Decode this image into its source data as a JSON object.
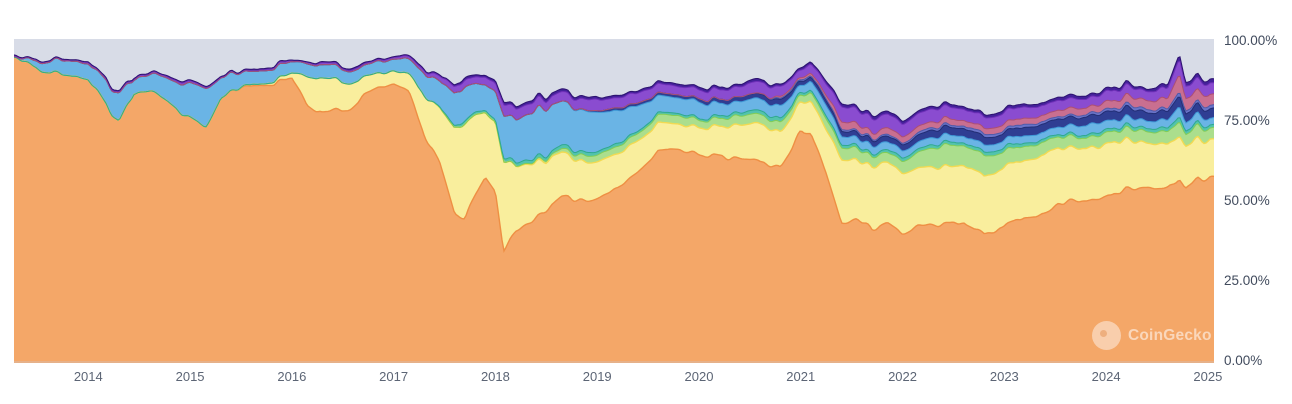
{
  "watermark": {
    "text": "CoinGecko"
  },
  "colors": {
    "page_bg": "#ffffff",
    "plot_bg": "#d8dce7",
    "axis_label_y": "#414b5d",
    "axis_label_x": "#5c6575"
  },
  "chart_data": {
    "type": "area",
    "stacked": true,
    "title": "",
    "xlabel": "",
    "ylabel": "",
    "unit": "%",
    "ylim": [
      0,
      100
    ],
    "x_range": [
      2013.27,
      2025.06
    ],
    "grid": false,
    "legend_position": "none",
    "y_ticks": [
      "100.00%",
      "75.00%",
      "50.00%",
      "25.00%",
      "0.00%"
    ],
    "x_ticks": [
      2014,
      2015,
      2016,
      2017,
      2018,
      2019,
      2020,
      2021,
      2022,
      2023,
      2024,
      2025
    ],
    "background_note": "remainder to 100% rendered as plain grey plot background",
    "x": [
      2013.3,
      2013.5,
      2013.75,
      2014.0,
      2014.2,
      2014.3,
      2014.45,
      2014.6,
      2014.8,
      2015.0,
      2015.15,
      2015.3,
      2015.5,
      2015.75,
      2016.0,
      2016.15,
      2016.3,
      2016.5,
      2016.7,
      2016.85,
      2017.0,
      2017.15,
      2017.3,
      2017.45,
      2017.6,
      2017.7,
      2017.8,
      2017.9,
      2018.0,
      2018.08,
      2018.2,
      2018.35,
      2018.5,
      2018.65,
      2018.8,
      2019.0,
      2019.2,
      2019.4,
      2019.6,
      2019.8,
      2020.0,
      2020.2,
      2020.4,
      2020.6,
      2020.8,
      2021.0,
      2021.1,
      2021.25,
      2021.4,
      2021.55,
      2021.7,
      2021.85,
      2022.0,
      2022.2,
      2022.4,
      2022.6,
      2022.8,
      2023.0,
      2023.2,
      2023.4,
      2023.6,
      2023.8,
      2024.0,
      2024.2,
      2024.4,
      2024.6,
      2024.72,
      2024.78,
      2024.9,
      2025.0
    ],
    "series": [
      {
        "name": "orange-base-layer",
        "fill": "#f4a768",
        "stroke": "#ee8f44",
        "values": [
          94.5,
          92,
          89,
          88,
          80,
          76,
          85,
          84,
          80,
          76,
          73,
          82,
          85,
          87,
          88,
          79,
          76,
          79,
          83,
          85,
          86,
          84,
          72,
          62,
          45,
          44,
          52,
          57,
          52,
          34,
          40,
          43,
          46,
          50,
          50,
          51,
          53,
          58,
          65,
          66,
          65,
          64,
          63,
          61,
          61,
          71,
          70,
          58,
          43,
          45,
          42,
          44,
          41,
          42,
          42,
          44,
          40,
          42,
          46,
          47,
          49,
          49,
          50,
          53,
          54,
          55,
          58,
          55,
          57,
          56
        ]
      },
      {
        "name": "yellow-layer",
        "fill": "#f9ee9d",
        "stroke": "#f2da52",
        "values": [
          0,
          0,
          0,
          0,
          0,
          0,
          0,
          0,
          0,
          0,
          0,
          0,
          0.2,
          0.5,
          1.5,
          9,
          11,
          9,
          6,
          4.5,
          4,
          5.5,
          12,
          17,
          26,
          29,
          24,
          20,
          22,
          28,
          21,
          19,
          16,
          14,
          12,
          11,
          10.5,
          9.5,
          8.5,
          8,
          8.5,
          9,
          10,
          11.5,
          11,
          8.5,
          10,
          13,
          20,
          19,
          20,
          19.5,
          19,
          18.5,
          18.5,
          18,
          18,
          18.5,
          18,
          18,
          17.5,
          16.5,
          16,
          15.5,
          14.5,
          13.5,
          13.5,
          13,
          12.5,
          12
        ]
      },
      {
        "name": "green-layer",
        "fill": "#abde8d",
        "stroke": "#82cd57",
        "values": [
          0,
          0,
          0,
          0,
          0,
          0,
          0,
          0,
          0,
          0,
          0,
          0,
          0,
          0,
          0,
          0,
          0,
          0,
          0,
          0,
          0,
          0,
          0,
          0,
          0,
          0,
          0,
          0,
          0,
          0,
          0,
          0.2,
          0.5,
          1,
          1.8,
          2,
          2.3,
          2.5,
          2.5,
          2.5,
          2.5,
          2.5,
          2.8,
          3,
          3,
          2,
          2.5,
          3.5,
          3.8,
          3.5,
          3.2,
          3.2,
          3.8,
          5.5,
          6.5,
          6,
          6.5,
          5,
          4.2,
          3.8,
          3.5,
          3.2,
          3.5,
          3.5,
          3.5,
          3.8,
          4.5,
          3.6,
          3.8,
          3.5
        ]
      },
      {
        "name": "teal-layer",
        "fill": "#52c3ad",
        "stroke": "#2fa98f",
        "values": [
          0,
          0,
          0,
          0,
          0,
          0,
          0,
          0,
          0,
          0,
          0,
          0,
          0,
          0,
          0,
          0,
          0,
          0,
          0,
          0,
          0,
          0,
          0,
          0.4,
          0.8,
          1,
          0.9,
          0.8,
          0.9,
          1.1,
          1,
          1,
          1,
          1,
          1,
          1,
          0.9,
          0.8,
          0.8,
          0.8,
          0.8,
          0.8,
          0.9,
          1,
          1,
          0.8,
          0.8,
          1,
          1.1,
          1,
          1,
          1,
          1,
          1,
          1,
          1,
          1,
          1,
          1,
          0.9,
          0.9,
          0.9,
          0.9,
          0.9,
          0.9,
          1,
          1.4,
          1,
          1,
          1
        ]
      },
      {
        "name": "light-blue-layer",
        "fill": "#6ab4e5",
        "stroke": "#3f99d6",
        "values": [
          0.2,
          2.5,
          4.5,
          5,
          7.5,
          8.5,
          4.5,
          5,
          7.5,
          11,
          12,
          6.5,
          4.5,
          4,
          3.5,
          4,
          4,
          4,
          3.5,
          3.5,
          3.5,
          4.5,
          7.5,
          8,
          10,
          11,
          9,
          8,
          9,
          13,
          14,
          15,
          15,
          14,
          13,
          12,
          10,
          8,
          5,
          4.5,
          5,
          4,
          3.5,
          3.5,
          4,
          2.2,
          3,
          3.5,
          2.8,
          2.5,
          2.5,
          2.5,
          2.3,
          2.2,
          2.2,
          2.2,
          2.3,
          2.5,
          2.4,
          2.4,
          2.6,
          3,
          2.6,
          2.5,
          2.3,
          2.3,
          3,
          2.4,
          2.4,
          2.3
        ]
      },
      {
        "name": "navy-layer",
        "fill": "#2f3e93",
        "stroke": "#222e75",
        "values": [
          0,
          0,
          0,
          0,
          0,
          0,
          0,
          0,
          0,
          0,
          0,
          0,
          0,
          0,
          0,
          0,
          0,
          0,
          0,
          0,
          0,
          0,
          0,
          0,
          0,
          0,
          0,
          0,
          0,
          0,
          0,
          0,
          0,
          0,
          0.3,
          0.5,
          0.8,
          1,
          1,
          1,
          1.1,
          1.2,
          1.4,
          1.6,
          1.8,
          1.3,
          1.4,
          1.6,
          1.6,
          1.6,
          1.8,
          1.8,
          2,
          2.2,
          2.3,
          2.3,
          2.5,
          2.5,
          2.5,
          2.5,
          2.5,
          2.6,
          2.8,
          2.8,
          2.6,
          2.7,
          3.4,
          2.8,
          2.8,
          2.7
        ]
      },
      {
        "name": "slate-blue-layer",
        "fill": "#6a74c9",
        "stroke": "#515ba9",
        "values": [
          0,
          0,
          0,
          0,
          0,
          0,
          0,
          0,
          0,
          0,
          0,
          0,
          0,
          0,
          0,
          0,
          0,
          0,
          0,
          0,
          0,
          0,
          0,
          0,
          0,
          0,
          0,
          0,
          0,
          0,
          0,
          0,
          0,
          0,
          0,
          0,
          0,
          0,
          0,
          0,
          0,
          0,
          0,
          0.2,
          0.4,
          0.4,
          0.4,
          0.5,
          0.6,
          0.6,
          0.6,
          0.7,
          0.7,
          0.8,
          0.8,
          0.8,
          0.8,
          0.8,
          0.8,
          0.8,
          0.8,
          0.9,
          0.9,
          0.9,
          0.9,
          0.9,
          1.2,
          1,
          1,
          0.9
        ]
      },
      {
        "name": "rose-layer",
        "fill": "#c96f90",
        "stroke": "#ad4f73",
        "values": [
          0,
          0,
          0,
          0,
          0,
          0,
          0,
          0,
          0,
          0,
          0,
          0,
          0,
          0,
          0,
          0,
          0,
          0,
          0,
          0,
          0,
          0,
          0,
          0,
          0,
          0,
          0,
          0,
          0,
          0,
          0,
          0,
          0,
          0,
          0,
          0,
          0,
          0,
          0,
          0,
          0,
          0,
          0,
          0,
          0.5,
          0.6,
          0.7,
          1.2,
          2.4,
          2,
          2,
          2,
          1.9,
          1.8,
          1.8,
          1.7,
          2,
          2,
          1.9,
          2,
          2.1,
          2.3,
          2.5,
          2.7,
          2.8,
          3.2,
          5.5,
          4,
          3.8,
          3.5
        ]
      },
      {
        "name": "violet-layer",
        "fill": "#8a4cd0",
        "stroke": "#6f2fb8",
        "values": [
          0.3,
          0.4,
          0.4,
          0.4,
          0.5,
          0.5,
          0.4,
          0.4,
          0.5,
          0.5,
          0.5,
          0.4,
          0.4,
          0.4,
          0.4,
          0.5,
          0.5,
          0.5,
          0.5,
          0.5,
          0.5,
          0.7,
          1,
          1.5,
          2,
          2.2,
          2,
          2.2,
          2.5,
          3.5,
          3.2,
          3.2,
          3,
          3,
          3.2,
          3.5,
          3.2,
          3,
          2.8,
          2.8,
          3,
          3,
          3.2,
          3.4,
          3.2,
          2.2,
          2.8,
          3.5,
          4.5,
          4.2,
          4.4,
          4.4,
          4,
          3.8,
          3.6,
          3.4,
          3.6,
          3.6,
          3.3,
          3.2,
          3,
          3,
          3.2,
          3.2,
          3,
          3.2,
          4.5,
          3.6,
          3.5,
          3.4
        ]
      },
      {
        "name": "dark-violet-cap-layer",
        "fill": "#45219b",
        "stroke": "#2d1370",
        "values": [
          0.3,
          0.25,
          0.25,
          0.25,
          0.25,
          0.25,
          0.25,
          0.25,
          0.25,
          0.25,
          0.25,
          0.25,
          0.25,
          0.25,
          0.25,
          0.25,
          0.3,
          0.3,
          0.3,
          0.3,
          0.3,
          0.3,
          0.4,
          0.5,
          0.6,
          0.6,
          0.6,
          0.6,
          0.7,
          0.9,
          0.8,
          0.8,
          0.8,
          0.8,
          0.8,
          0.8,
          0.8,
          0.7,
          0.7,
          0.7,
          0.7,
          0.7,
          0.8,
          0.8,
          0.8,
          0.7,
          0.7,
          0.8,
          0.9,
          0.9,
          0.9,
          0.9,
          0.9,
          0.9,
          0.9,
          0.9,
          0.9,
          0.9,
          0.9,
          0.9,
          0.9,
          0.9,
          0.9,
          0.9,
          0.9,
          1,
          1.3,
          1,
          1,
          1
        ]
      }
    ]
  }
}
